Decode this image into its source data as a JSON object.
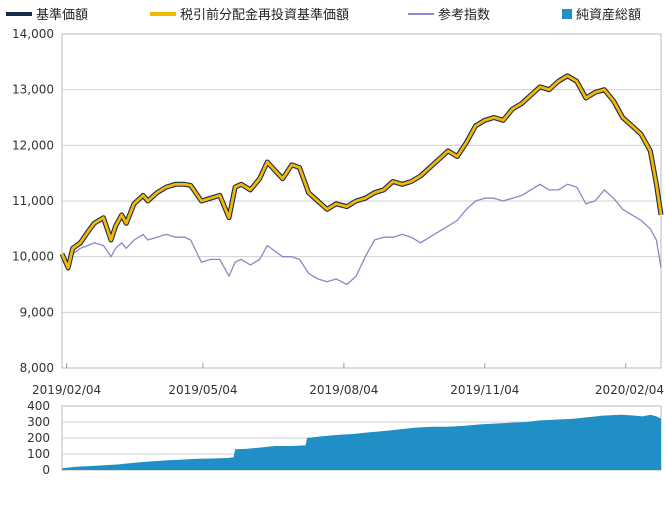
{
  "chart_data": [
    {
      "type": "line",
      "legend_placement": "top",
      "grid": true,
      "x_tick_labels": [
        "2019/02/04",
        "2019/05/04",
        "2019/08/04",
        "2019/11/04",
        "2020/02/04"
      ],
      "ylim": [
        8000,
        14000
      ],
      "y_ticks": [
        8000,
        9000,
        10000,
        11000,
        12000,
        13000,
        14000
      ],
      "y_tick_labels": [
        "8,000",
        "9,000",
        "10,000",
        "11,000",
        "12,000",
        "13,000",
        "14,000"
      ],
      "series": [
        {
          "name": "基準価額",
          "color": "#1a2a4a",
          "x": [
            "2019/02/01",
            "2019/02/05",
            "2019/02/08",
            "2019/02/13",
            "2019/02/18",
            "2019/02/22",
            "2019/02/28",
            "2019/03/05",
            "2019/03/08",
            "2019/03/12",
            "2019/03/15",
            "2019/03/20",
            "2019/03/26",
            "2019/03/29",
            "2019/04/04",
            "2019/04/10",
            "2019/04/16",
            "2019/04/22",
            "2019/04/26",
            "2019/05/03",
            "2019/05/09",
            "2019/05/15",
            "2019/05/21",
            "2019/05/25",
            "2019/05/29",
            "2019/06/04",
            "2019/06/10",
            "2019/06/15",
            "2019/06/20",
            "2019/06/25",
            "2019/07/01",
            "2019/07/06",
            "2019/07/12",
            "2019/07/18",
            "2019/07/24",
            "2019/07/30",
            "2019/08/06",
            "2019/08/12",
            "2019/08/18",
            "2019/08/24",
            "2019/08/30",
            "2019/09/05",
            "2019/09/11",
            "2019/09/17",
            "2019/09/23",
            "2019/09/29",
            "2019/10/05",
            "2019/10/11",
            "2019/10/17",
            "2019/10/23",
            "2019/10/29",
            "2019/11/04",
            "2019/11/10",
            "2019/11/16",
            "2019/11/22",
            "2019/11/28",
            "2019/12/04",
            "2019/12/10",
            "2019/12/16",
            "2019/12/22",
            "2019/12/28",
            "2020/01/03",
            "2020/01/09",
            "2020/01/15",
            "2020/01/21",
            "2020/01/27",
            "2020/02/02",
            "2020/02/08",
            "2020/02/14",
            "2020/02/20",
            "2020/02/24",
            "2020/02/27"
          ],
          "values": [
            10050,
            9800,
            10150,
            10250,
            10450,
            10600,
            10700,
            10300,
            10550,
            10750,
            10600,
            10950,
            11100,
            11000,
            11150,
            11250,
            11300,
            11300,
            11280,
            11000,
            11050,
            11100,
            10700,
            11250,
            11300,
            11200,
            11400,
            11700,
            11550,
            11400,
            11650,
            11600,
            11150,
            11000,
            10850,
            10950,
            10900,
            11000,
            11050,
            11150,
            11200,
            11350,
            11300,
            11350,
            11450,
            11600,
            11750,
            11900,
            11800,
            12050,
            12350,
            12450,
            12500,
            12450,
            12650,
            12750,
            12900,
            13050,
            13000,
            13150,
            13250,
            13150,
            12850,
            12950,
            13000,
            12800,
            12500,
            12350,
            12200,
            11900,
            11300,
            10750
          ]
        },
        {
          "name": "税引前分配金再投資基準価額",
          "color": "#f5b800",
          "x": [
            "2019/02/01",
            "2019/02/05",
            "2019/02/08",
            "2019/02/13",
            "2019/02/18",
            "2019/02/22",
            "2019/02/28",
            "2019/03/05",
            "2019/03/08",
            "2019/03/12",
            "2019/03/15",
            "2019/03/20",
            "2019/03/26",
            "2019/03/29",
            "2019/04/04",
            "2019/04/10",
            "2019/04/16",
            "2019/04/22",
            "2019/04/26",
            "2019/05/03",
            "2019/05/09",
            "2019/05/15",
            "2019/05/21",
            "2019/05/25",
            "2019/05/29",
            "2019/06/04",
            "2019/06/10",
            "2019/06/15",
            "2019/06/20",
            "2019/06/25",
            "2019/07/01",
            "2019/07/06",
            "2019/07/12",
            "2019/07/18",
            "2019/07/24",
            "2019/07/30",
            "2019/08/06",
            "2019/08/12",
            "2019/08/18",
            "2019/08/24",
            "2019/08/30",
            "2019/09/05",
            "2019/09/11",
            "2019/09/17",
            "2019/09/23",
            "2019/09/29",
            "2019/10/05",
            "2019/10/11",
            "2019/10/17",
            "2019/10/23",
            "2019/10/29",
            "2019/11/04",
            "2019/11/10",
            "2019/11/16",
            "2019/11/22",
            "2019/11/28",
            "2019/12/04",
            "2019/12/10",
            "2019/12/16",
            "2019/12/22",
            "2019/12/28",
            "2020/01/03",
            "2020/01/09",
            "2020/01/15",
            "2020/01/21",
            "2020/01/27",
            "2020/02/02",
            "2020/02/08",
            "2020/02/14",
            "2020/02/20",
            "2020/02/24",
            "2020/02/27"
          ],
          "values": [
            10050,
            9800,
            10150,
            10250,
            10450,
            10600,
            10700,
            10300,
            10550,
            10750,
            10600,
            10950,
            11100,
            11000,
            11150,
            11250,
            11300,
            11300,
            11280,
            11000,
            11050,
            11100,
            10700,
            11250,
            11300,
            11200,
            11400,
            11700,
            11550,
            11400,
            11650,
            11600,
            11150,
            11000,
            10850,
            10950,
            10900,
            11000,
            11050,
            11150,
            11200,
            11350,
            11300,
            11350,
            11450,
            11600,
            11750,
            11900,
            11800,
            12050,
            12350,
            12450,
            12500,
            12450,
            12650,
            12750,
            12900,
            13050,
            13000,
            13150,
            13250,
            13150,
            12850,
            12950,
            13000,
            12800,
            12500,
            12350,
            12200,
            11900,
            11300,
            10750
          ]
        },
        {
          "name": "参考指数",
          "color": "#8e86c4",
          "x": [
            "2019/02/01",
            "2019/02/05",
            "2019/02/08",
            "2019/02/13",
            "2019/02/18",
            "2019/02/22",
            "2019/02/28",
            "2019/03/05",
            "2019/03/08",
            "2019/03/12",
            "2019/03/15",
            "2019/03/20",
            "2019/03/26",
            "2019/03/29",
            "2019/04/04",
            "2019/04/10",
            "2019/04/16",
            "2019/04/22",
            "2019/04/26",
            "2019/05/03",
            "2019/05/09",
            "2019/05/15",
            "2019/05/21",
            "2019/05/25",
            "2019/05/29",
            "2019/06/04",
            "2019/06/10",
            "2019/06/15",
            "2019/06/20",
            "2019/06/25",
            "2019/07/01",
            "2019/07/06",
            "2019/07/12",
            "2019/07/18",
            "2019/07/24",
            "2019/07/30",
            "2019/08/06",
            "2019/08/12",
            "2019/08/18",
            "2019/08/24",
            "2019/08/30",
            "2019/09/05",
            "2019/09/11",
            "2019/09/17",
            "2019/09/23",
            "2019/09/29",
            "2019/10/05",
            "2019/10/11",
            "2019/10/17",
            "2019/10/23",
            "2019/10/29",
            "2019/11/04",
            "2019/11/10",
            "2019/11/16",
            "2019/11/22",
            "2019/11/28",
            "2019/12/04",
            "2019/12/10",
            "2019/12/16",
            "2019/12/22",
            "2019/12/28",
            "2020/01/03",
            "2020/01/09",
            "2020/01/15",
            "2020/01/21",
            "2020/01/27",
            "2020/02/02",
            "2020/02/08",
            "2020/02/14",
            "2020/02/20",
            "2020/02/24",
            "2020/02/27"
          ],
          "values": [
            10050,
            9750,
            10050,
            10150,
            10200,
            10250,
            10200,
            10000,
            10150,
            10250,
            10150,
            10300,
            10400,
            10300,
            10350,
            10400,
            10350,
            10350,
            10300,
            9900,
            9950,
            9950,
            9650,
            9900,
            9950,
            9850,
            9950,
            10200,
            10100,
            10000,
            10000,
            9950,
            9700,
            9600,
            9550,
            9600,
            9500,
            9650,
            10000,
            10300,
            10350,
            10350,
            10400,
            10350,
            10250,
            10350,
            10450,
            10550,
            10650,
            10850,
            11000,
            11050,
            11050,
            11000,
            11050,
            11100,
            11200,
            11300,
            11200,
            11200,
            11300,
            11250,
            10950,
            11000,
            11200,
            11050,
            10850,
            10750,
            10650,
            10500,
            10300,
            9800
          ]
        }
      ]
    },
    {
      "type": "area",
      "ylim": [
        0,
        400
      ],
      "y_ticks": [
        0,
        100,
        200,
        300,
        400
      ],
      "y_tick_labels": [
        "0",
        "100",
        "200",
        "300",
        "400"
      ],
      "series": [
        {
          "name": "純資産総額",
          "color": "#1f8fc6",
          "x": [
            "2019/02/01",
            "2019/02/05",
            "2019/02/10",
            "2019/02/20",
            "2019/03/01",
            "2019/03/10",
            "2019/03/20",
            "2019/04/01",
            "2019/04/10",
            "2019/04/20",
            "2019/05/01",
            "2019/05/10",
            "2019/05/20",
            "2019/05/24",
            "2019/05/25",
            "2019/06/01",
            "2019/06/10",
            "2019/06/20",
            "2019/07/01",
            "2019/07/10",
            "2019/07/11",
            "2019/07/20",
            "2019/08/01",
            "2019/08/10",
            "2019/08/20",
            "2019/09/01",
            "2019/09/10",
            "2019/09/20",
            "2019/10/01",
            "2019/10/10",
            "2019/10/20",
            "2019/11/01",
            "2019/11/10",
            "2019/11/20",
            "2019/12/01",
            "2019/12/10",
            "2019/12/20",
            "2020/01/01",
            "2020/01/10",
            "2020/01/20",
            "2020/02/01",
            "2020/02/10",
            "2020/02/15",
            "2020/02/20",
            "2020/02/24",
            "2020/02/27"
          ],
          "values": [
            10,
            15,
            20,
            25,
            30,
            35,
            45,
            55,
            60,
            65,
            70,
            72,
            75,
            80,
            130,
            132,
            140,
            150,
            150,
            155,
            200,
            210,
            220,
            225,
            235,
            245,
            255,
            265,
            270,
            270,
            275,
            285,
            290,
            295,
            300,
            310,
            315,
            320,
            330,
            340,
            345,
            340,
            335,
            345,
            335,
            320
          ]
        }
      ]
    }
  ]
}
